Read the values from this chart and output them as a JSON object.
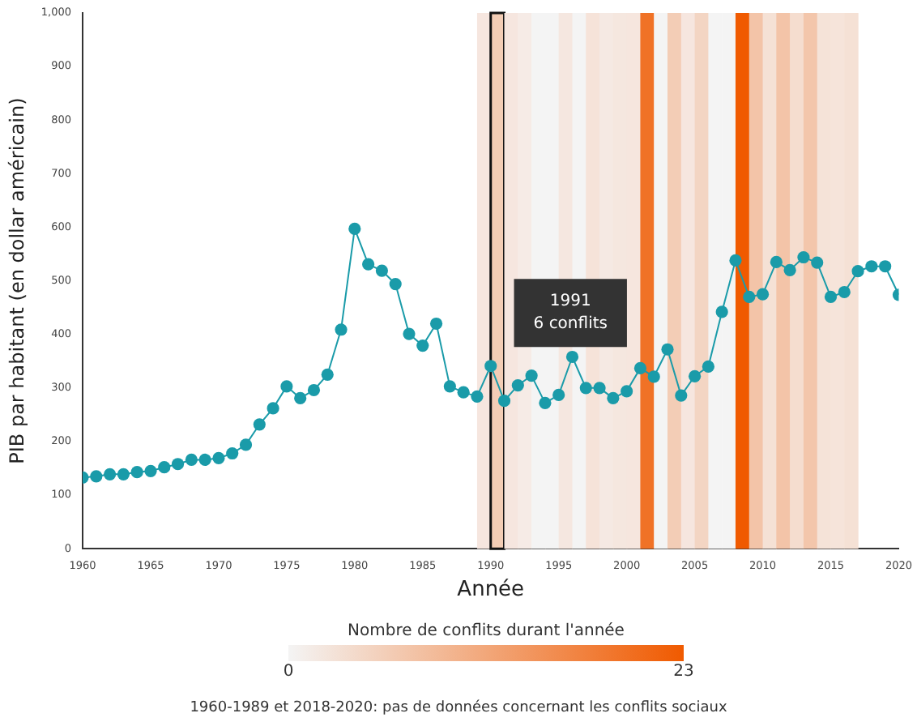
{
  "chart_data": {
    "type": "line",
    "xlabel": "Année",
    "ylabel": "PIB par habitant (en dollar américain)",
    "clabel": "Nombre de conflits durant l'année",
    "clim": [
      0,
      23
    ],
    "cticks": [
      0,
      23
    ],
    "x": [
      1960,
      1961,
      1962,
      1963,
      1964,
      1965,
      1966,
      1967,
      1968,
      1969,
      1970,
      1971,
      1972,
      1973,
      1974,
      1975,
      1976,
      1977,
      1978,
      1979,
      1980,
      1981,
      1982,
      1983,
      1984,
      1985,
      1986,
      1987,
      1988,
      1989,
      1990,
      1991,
      1992,
      1993,
      1994,
      1995,
      1996,
      1997,
      1998,
      1999,
      2000,
      2001,
      2002,
      2003,
      2004,
      2005,
      2006,
      2007,
      2008,
      2009,
      2010,
      2011,
      2012,
      2013,
      2014,
      2015,
      2016,
      2017,
      2018,
      2019,
      2020
    ],
    "series": [
      {
        "color": "#1a9ba9",
        "values": [
          133,
          135,
          139,
          139,
          143,
          145,
          152,
          158,
          166,
          166,
          169,
          178,
          194,
          232,
          262,
          303,
          281,
          296,
          325,
          409,
          597,
          531,
          519,
          494,
          401,
          379,
          420,
          303,
          292,
          284,
          341,
          276,
          305,
          323,
          272,
          287,
          358,
          300,
          300,
          281,
          294,
          337,
          321,
          372,
          286,
          322,
          340,
          442,
          538,
          470,
          475,
          535,
          520,
          544,
          534,
          470,
          479,
          518,
          527,
          527,
          474
        ]
      }
    ],
    "xlim": [
      1960,
      2020
    ],
    "xticks": [
      1960,
      1965,
      1970,
      1975,
      1980,
      1985,
      1990,
      1995,
      2000,
      2005,
      2010,
      2015,
      2020
    ],
    "ylim": [
      0,
      1000
    ],
    "yticks": [
      0,
      100,
      200,
      300,
      400,
      500,
      600,
      700,
      800,
      900,
      {
        "value": 1000,
        "label": "1,000"
      }
    ],
    "grid": false,
    "legend": false,
    "marker": "circle",
    "line_style": "solid",
    "bands": [
      {
        "axis": "x",
        "from": 1989,
        "to": 1990,
        "color": "#f6e6df"
      },
      {
        "axis": "x",
        "from": 1990,
        "to": 1991,
        "color": "#f3cdb5"
      },
      {
        "axis": "x",
        "from": 1991,
        "to": 1992,
        "color": "#f6e6df"
      },
      {
        "axis": "x",
        "from": 1992,
        "to": 1993,
        "color": "#f6ebe6"
      },
      {
        "axis": "x",
        "from": 1993,
        "to": 1994,
        "color": "#f4f4f4"
      },
      {
        "axis": "x",
        "from": 1994,
        "to": 1995,
        "color": "#f4f4f4"
      },
      {
        "axis": "x",
        "from": 1995,
        "to": 1996,
        "color": "#f5e7e0"
      },
      {
        "axis": "x",
        "from": 1996,
        "to": 1997,
        "color": "#f4f4f4"
      },
      {
        "axis": "x",
        "from": 1997,
        "to": 1998,
        "color": "#f6e3d9"
      },
      {
        "axis": "x",
        "from": 1998,
        "to": 1999,
        "color": "#f5e9e3"
      },
      {
        "axis": "x",
        "from": 1999,
        "to": 2000,
        "color": "#f5e7df"
      },
      {
        "axis": "x",
        "from": 2000,
        "to": 2001,
        "color": "#f6e6de"
      },
      {
        "axis": "x",
        "from": 2001,
        "to": 2002,
        "color": "#f07226"
      },
      {
        "axis": "x",
        "from": 2002,
        "to": 2003,
        "color": "#f4f4f4"
      },
      {
        "axis": "x",
        "from": 2003,
        "to": 2004,
        "color": "#f3cdb6"
      },
      {
        "axis": "x",
        "from": 2004,
        "to": 2005,
        "color": "#f6e6df"
      },
      {
        "axis": "x",
        "from": 2005,
        "to": 2006,
        "color": "#f3d5c3"
      },
      {
        "axis": "x",
        "from": 2006,
        "to": 2007,
        "color": "#f4f4f4"
      },
      {
        "axis": "x",
        "from": 2007,
        "to": 2008,
        "color": "#f4f4f4"
      },
      {
        "axis": "x",
        "from": 2008,
        "to": 2009,
        "color": "#f05a00"
      },
      {
        "axis": "x",
        "from": 2009,
        "to": 2010,
        "color": "#f3c4a8"
      },
      {
        "axis": "x",
        "from": 2010,
        "to": 2011,
        "color": "#f5e1d5"
      },
      {
        "axis": "x",
        "from": 2011,
        "to": 2012,
        "color": "#f3c4a8"
      },
      {
        "axis": "x",
        "from": 2012,
        "to": 2013,
        "color": "#f5ddcf"
      },
      {
        "axis": "x",
        "from": 2013,
        "to": 2014,
        "color": "#f3c6ab"
      },
      {
        "axis": "x",
        "from": 2014,
        "to": 2015,
        "color": "#f5e3d8"
      },
      {
        "axis": "x",
        "from": 2015,
        "to": 2016,
        "color": "#f6e4da"
      },
      {
        "axis": "x",
        "from": 2016,
        "to": 2017,
        "color": "#f5e1d5"
      }
    ],
    "annotations": [
      {
        "text": "1991\n6 conflits",
        "x": 1991,
        "y": 440
      },
      "1960-1989 et 2018-2020: pas de données concernant les conflits sociaux"
    ]
  }
}
